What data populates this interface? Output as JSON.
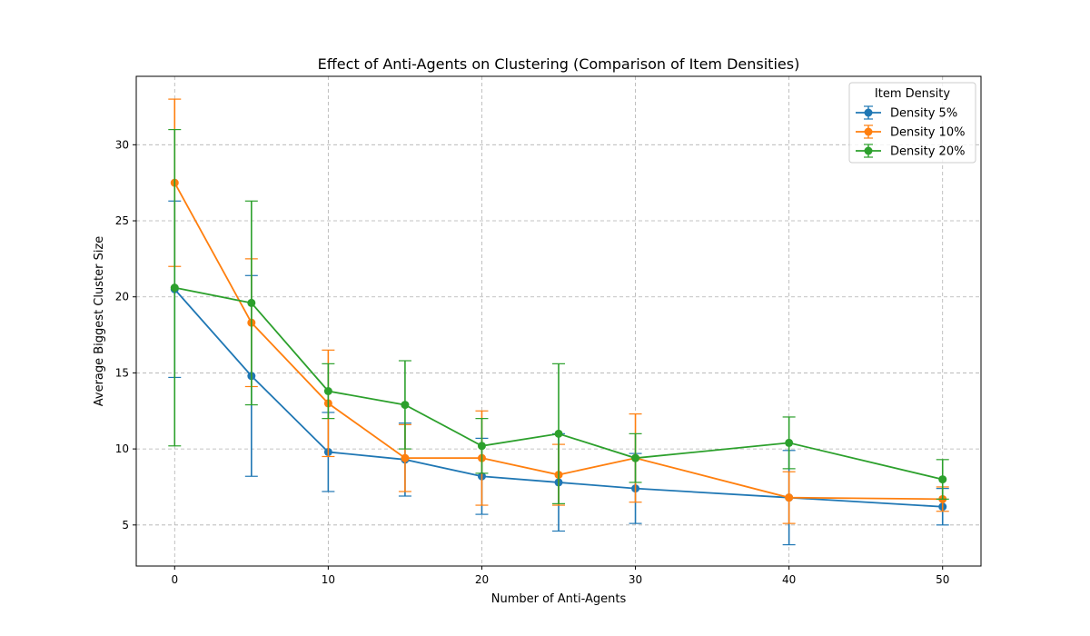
{
  "chart_data": {
    "type": "line",
    "title": "Effect of Anti-Agents on Clustering (Comparison of Item Densities)",
    "xlabel": "Number of Anti-Agents",
    "ylabel": "Average Biggest Cluster Size",
    "x": [
      0,
      5,
      10,
      15,
      20,
      25,
      30,
      40,
      50
    ],
    "xlim": [
      -2.5,
      52.5
    ],
    "ylim": [
      2.3,
      34.5
    ],
    "xticks": [
      0,
      10,
      20,
      30,
      40,
      50
    ],
    "yticks": [
      5,
      10,
      15,
      20,
      25,
      30
    ],
    "grid": true,
    "legend": {
      "title": "Item Density",
      "position": "top-right"
    },
    "series": [
      {
        "name": "Density 5%",
        "color": "#1f77b4",
        "values": [
          20.5,
          14.8,
          9.8,
          9.3,
          8.2,
          7.8,
          7.4,
          6.8,
          6.2
        ],
        "errors": [
          5.8,
          6.6,
          2.6,
          2.4,
          2.5,
          3.2,
          2.3,
          3.1,
          1.2
        ]
      },
      {
        "name": "Density 10%",
        "color": "#ff7f0e",
        "values": [
          27.5,
          18.3,
          13.0,
          9.4,
          9.4,
          8.3,
          9.4,
          6.8,
          6.7
        ],
        "errors": [
          5.5,
          4.2,
          3.5,
          2.2,
          3.1,
          2.0,
          2.9,
          1.7,
          0.8
        ]
      },
      {
        "name": "Density 20%",
        "color": "#2ca02c",
        "values": [
          20.6,
          19.6,
          13.8,
          12.9,
          10.2,
          11.0,
          9.4,
          10.4,
          8.0
        ],
        "errors": [
          10.4,
          6.7,
          1.8,
          2.9,
          1.8,
          4.6,
          1.6,
          1.7,
          1.3
        ]
      }
    ]
  }
}
